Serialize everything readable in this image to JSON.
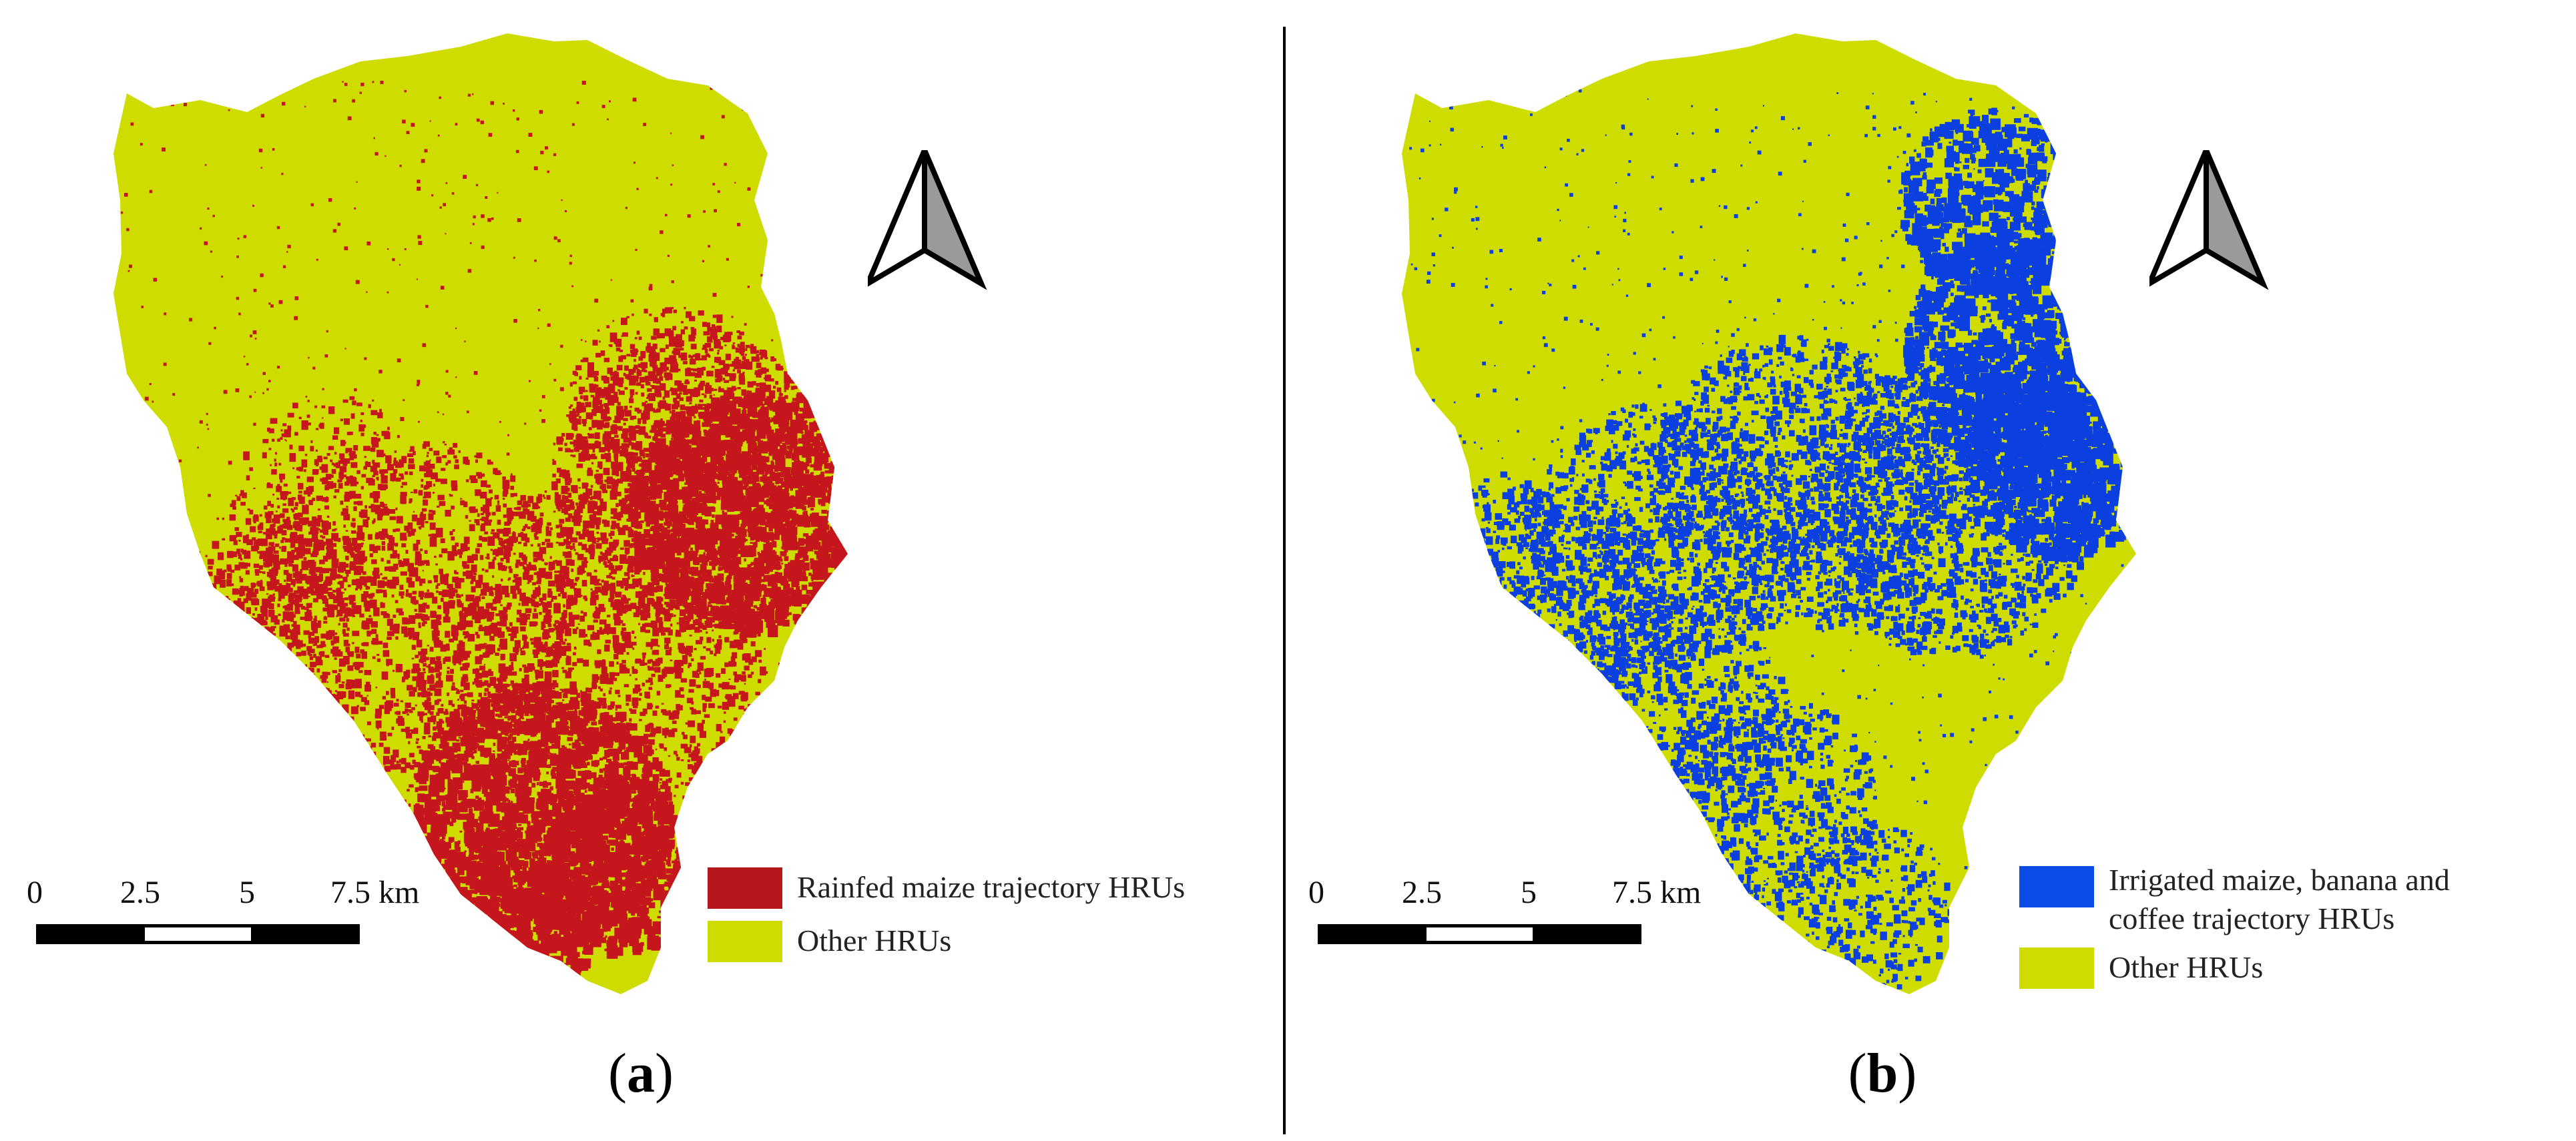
{
  "figure": {
    "panels": [
      {
        "id": "a",
        "label_open": "(",
        "label_letter": "a",
        "label_close": ")",
        "highlight_color": "#c4161c",
        "base_color": "#cfdc00",
        "legend": [
          {
            "label": "Rainfed maize trajectory HRUs",
            "color": "#b5161b"
          },
          {
            "label": "Other HRUs",
            "color": "#cfdc00"
          }
        ]
      },
      {
        "id": "b",
        "label_open": "(",
        "label_letter": "b",
        "label_close": ")",
        "highlight_color": "#0b3fe0",
        "base_color": "#cfdc00",
        "legend": [
          {
            "label": "Irrigated maize, banana and coffee trajectory HRUs",
            "color": "#0b4be8"
          },
          {
            "label": "Other HRUs",
            "color": "#cfdc00"
          }
        ]
      }
    ],
    "scale_bar": {
      "ticks": [
        "0",
        "2.5",
        "5",
        "7.5 km"
      ],
      "segment_colors": [
        "#000000",
        "#ffffff",
        "#000000",
        "#000000"
      ]
    },
    "north_arrow": {
      "icon": "north-arrow-icon",
      "fill": "#ffffff",
      "shade": "#9a9a9a"
    }
  }
}
